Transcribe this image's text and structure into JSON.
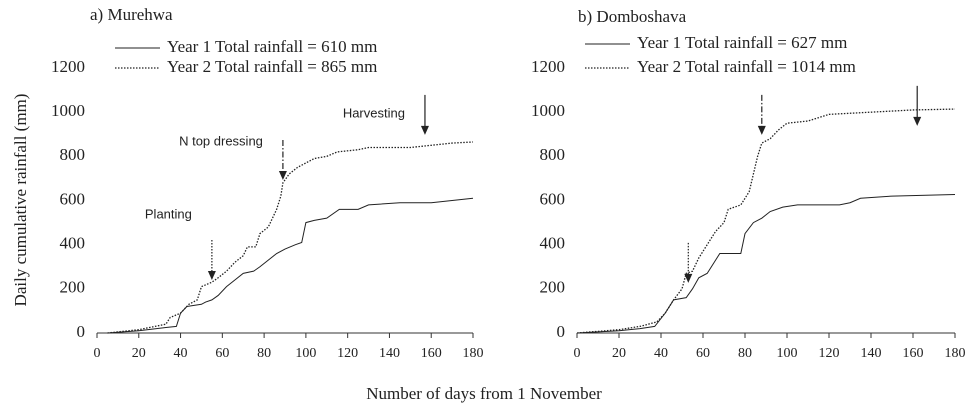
{
  "ylabel": "Daily cumulative rainfall (mm)",
  "xlabel": "Number of days from 1 November",
  "chart_data": [
    {
      "type": "line",
      "title": "a) Murehwa",
      "xlim": [
        0,
        180
      ],
      "xticks": [
        0,
        20,
        40,
        60,
        80,
        100,
        120,
        140,
        160,
        180
      ],
      "ylim": [
        0,
        1200
      ],
      "yticks": [
        0,
        200,
        400,
        600,
        800,
        1000,
        1200
      ],
      "grid": false,
      "series": [
        {
          "name": "Year 1 Total rainfall = 610 mm",
          "color": "#222222",
          "style": "solid",
          "x": [
            5,
            20,
            33,
            38,
            40,
            43,
            50,
            52,
            55,
            58,
            62,
            66,
            70,
            75,
            78,
            82,
            86,
            90,
            95,
            98,
            100,
            104,
            110,
            116,
            125,
            130,
            145,
            160,
            170,
            180
          ],
          "values": [
            0,
            10,
            25,
            30,
            90,
            120,
            130,
            140,
            150,
            170,
            210,
            240,
            270,
            280,
            300,
            330,
            360,
            380,
            400,
            410,
            500,
            510,
            520,
            560,
            560,
            580,
            590,
            590,
            600,
            610
          ]
        },
        {
          "name": "Year 2 Total rainfall = 865 mm",
          "color": "#222222",
          "style": "dotted",
          "x": [
            5,
            20,
            33,
            35,
            40,
            44,
            48,
            50,
            55,
            58,
            62,
            66,
            70,
            72,
            76,
            78,
            82,
            86,
            88,
            89,
            92,
            96,
            100,
            104,
            110,
            115,
            125,
            130,
            150,
            160,
            170,
            180
          ],
          "values": [
            0,
            15,
            40,
            70,
            90,
            130,
            150,
            210,
            230,
            250,
            280,
            320,
            350,
            390,
            390,
            450,
            480,
            560,
            620,
            680,
            720,
            750,
            770,
            790,
            800,
            820,
            830,
            840,
            840,
            850,
            860,
            865
          ]
        }
      ],
      "annotations": [
        {
          "text": "Planting",
          "x": 55,
          "y": 240,
          "style": "dotted"
        },
        {
          "text": "N top dressing",
          "x": 89,
          "y": 693,
          "style": "dashdot"
        },
        {
          "text": "Harvesting",
          "x": 157,
          "y": 897,
          "style": "solid"
        }
      ]
    },
    {
      "type": "line",
      "title": "b) Domboshava",
      "xlim": [
        0,
        180
      ],
      "xticks": [
        0,
        20,
        40,
        60,
        80,
        100,
        120,
        140,
        160,
        180
      ],
      "ylim": [
        0,
        1200
      ],
      "yticks": [
        0,
        200,
        400,
        600,
        800,
        1000,
        1200
      ],
      "grid": false,
      "series": [
        {
          "name": "Year 1 Total rainfall = 627 mm",
          "color": "#222222",
          "style": "solid",
          "x": [
            0,
            10,
            20,
            30,
            37,
            42,
            46,
            52,
            55,
            58,
            62,
            66,
            68,
            78,
            80,
            84,
            88,
            92,
            98,
            105,
            125,
            130,
            135,
            150,
            180
          ],
          "values": [
            0,
            5,
            10,
            20,
            30,
            90,
            150,
            160,
            200,
            250,
            270,
            330,
            360,
            360,
            450,
            500,
            520,
            550,
            570,
            580,
            580,
            590,
            610,
            620,
            627
          ]
        },
        {
          "name": "Year 2 Total rainfall = 1014 mm",
          "color": "#222222",
          "style": "dotted",
          "x": [
            0,
            20,
            30,
            38,
            42,
            46,
            50,
            52,
            55,
            58,
            62,
            66,
            70,
            72,
            78,
            82,
            86,
            88,
            92,
            96,
            100,
            110,
            120,
            140,
            160,
            180
          ],
          "values": [
            0,
            15,
            30,
            50,
            90,
            150,
            200,
            270,
            280,
            340,
            400,
            460,
            500,
            560,
            580,
            640,
            800,
            860,
            880,
            920,
            950,
            960,
            990,
            1000,
            1010,
            1014
          ]
        }
      ],
      "annotations": [
        {
          "x": 53,
          "y": 227,
          "style": "dotted"
        },
        {
          "x": 88,
          "y": 897,
          "style": "dashdot"
        },
        {
          "x": 162,
          "y": 938,
          "style": "solid"
        }
      ]
    }
  ]
}
